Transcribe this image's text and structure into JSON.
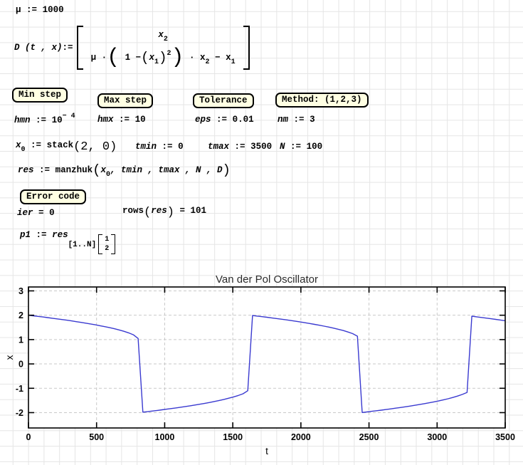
{
  "colors": {
    "region_box_fill": "#ffffe3",
    "region_box_border": "#000000",
    "plot_line": "#3a3ad0",
    "plot_grid": "#c9c9c9",
    "worksheet_grid": "#e5e5e5"
  },
  "formulas": {
    "mu": {
      "lhs": "μ",
      "op": ":=",
      "value": "1000"
    },
    "D": {
      "lhs": "D",
      "args": "(t , x)",
      "op": ":=",
      "row1": {
        "base": "x",
        "sub": "2"
      },
      "row2": {
        "mu": "μ ·",
        "p_open": "(",
        "one_minus": "1 −",
        "p_open2": "(",
        "x": "x",
        "sub1": "1",
        "p_close2": ")",
        "sup": "2",
        "p_close": ")",
        "times_x": "· x",
        "sub2": "2",
        "minus_x": "− x",
        "sub3": "1"
      }
    },
    "min_step_label": "Min step",
    "hmn": {
      "lhs": "hmn",
      "op": ":=",
      "base": "10",
      "sup": "− 4"
    },
    "max_step_label": "Max step",
    "hmx": {
      "lhs": "hmx",
      "op": ":=",
      "value": "10"
    },
    "tolerance_label": "Tolerance",
    "eps": {
      "lhs": "eps",
      "op": ":=",
      "value": "0.01"
    },
    "method_label": "Method: (1,2,3)",
    "nm": {
      "lhs": "nm",
      "op": ":=",
      "value": "3"
    },
    "x0": {
      "base": "x",
      "sub": "0",
      "op": ":=",
      "fn": "stack",
      "args": "(2, 0)"
    },
    "tmin": {
      "lhs": "tmin",
      "op": ":=",
      "value": "0"
    },
    "tmax": {
      "lhs": "tmax",
      "op": ":=",
      "value": "3500"
    },
    "n": {
      "lhs": "N",
      "op": ":=",
      "value": "100"
    },
    "res": {
      "lhs": "res",
      "op": ":=",
      "fn": "manzhuk",
      "open": "(",
      "xbase": "x",
      "xsub": "0",
      "rest": ", tmin , tmax , N , D",
      "close": ")"
    },
    "error_label": "Error code",
    "ier": {
      "lhs": "ier",
      "op": "=",
      "value": "0"
    },
    "rows": {
      "fn": "rows",
      "open": "(",
      "arg": "res",
      "close": ")",
      "op": "=",
      "value": "101"
    },
    "p1": {
      "lhs": "p1",
      "op": ":=",
      "base": "res",
      "index": "[1..N]",
      "v1": "1",
      "v2": "2"
    }
  },
  "chart_data": {
    "type": "line",
    "title": "Van der Pol Oscillator",
    "xlabel": "t",
    "ylabel": "x",
    "xlim": [
      0,
      3500
    ],
    "ylim": [
      -2.63,
      3.16
    ],
    "xticks": [
      0,
      500,
      1000,
      1500,
      2000,
      2500,
      3000,
      3500
    ],
    "yticks": [
      3,
      2,
      1,
      0,
      -1,
      -2
    ],
    "grid": "dashed",
    "legend": "none",
    "line_color": "#3a3ad0",
    "series": [
      {
        "name": "p1",
        "points": [
          [
            0,
            2
          ],
          [
            35,
            1.976
          ],
          [
            70,
            1.952
          ],
          [
            105,
            1.928
          ],
          [
            140,
            1.903
          ],
          [
            175,
            1.877
          ],
          [
            210,
            1.851
          ],
          [
            245,
            1.823
          ],
          [
            280,
            1.796
          ],
          [
            315,
            1.767
          ],
          [
            350,
            1.737
          ],
          [
            385,
            1.707
          ],
          [
            420,
            1.674
          ],
          [
            455,
            1.641
          ],
          [
            490,
            1.607
          ],
          [
            525,
            1.57
          ],
          [
            560,
            1.531
          ],
          [
            595,
            1.49
          ],
          [
            630,
            1.446
          ],
          [
            665,
            1.397
          ],
          [
            700,
            1.342
          ],
          [
            735,
            1.278
          ],
          [
            770,
            1.198
          ],
          [
            805,
            1.045
          ],
          [
            840,
            -1.982
          ],
          [
            875,
            -1.959
          ],
          [
            910,
            -1.935
          ],
          [
            945,
            -1.91
          ],
          [
            980,
            -1.885
          ],
          [
            1015,
            -1.859
          ],
          [
            1050,
            -1.832
          ],
          [
            1085,
            -1.805
          ],
          [
            1120,
            -1.776
          ],
          [
            1155,
            -1.747
          ],
          [
            1190,
            -1.717
          ],
          [
            1225,
            -1.685
          ],
          [
            1260,
            -1.652
          ],
          [
            1295,
            -1.618
          ],
          [
            1330,
            -1.582
          ],
          [
            1365,
            -1.543
          ],
          [
            1400,
            -1.502
          ],
          [
            1435,
            -1.457
          ],
          [
            1470,
            -1.409
          ],
          [
            1505,
            -1.356
          ],
          [
            1540,
            -1.296
          ],
          [
            1575,
            -1.226
          ],
          [
            1610,
            -1.1
          ],
          [
            1645,
            1.988
          ],
          [
            1680,
            1.965
          ],
          [
            1715,
            1.941
          ],
          [
            1750,
            1.916
          ],
          [
            1785,
            1.891
          ],
          [
            1820,
            1.865
          ],
          [
            1855,
            1.838
          ],
          [
            1890,
            1.811
          ],
          [
            1925,
            1.782
          ],
          [
            1960,
            1.753
          ],
          [
            1995,
            1.723
          ],
          [
            2030,
            1.692
          ],
          [
            2065,
            1.659
          ],
          [
            2100,
            1.626
          ],
          [
            2135,
            1.59
          ],
          [
            2170,
            1.553
          ],
          [
            2205,
            1.513
          ],
          [
            2240,
            1.471
          ],
          [
            2275,
            1.424
          ],
          [
            2310,
            1.373
          ],
          [
            2345,
            1.313
          ],
          [
            2380,
            1.245
          ],
          [
            2415,
            1.139
          ],
          [
            2450,
            -1.994
          ],
          [
            2485,
            -1.971
          ],
          [
            2520,
            -1.947
          ],
          [
            2555,
            -1.923
          ],
          [
            2590,
            -1.898
          ],
          [
            2625,
            -1.872
          ],
          [
            2660,
            -1.845
          ],
          [
            2695,
            -1.818
          ],
          [
            2730,
            -1.79
          ],
          [
            2765,
            -1.761
          ],
          [
            2800,
            -1.731
          ],
          [
            2835,
            -1.7
          ],
          [
            2870,
            -1.668
          ],
          [
            2905,
            -1.634
          ],
          [
            2940,
            -1.599
          ],
          [
            2975,
            -1.561
          ],
          [
            3010,
            -1.521
          ],
          [
            3045,
            -1.478
          ],
          [
            3080,
            -1.431
          ],
          [
            3115,
            -1.379
          ],
          [
            3150,
            -1.32
          ],
          [
            3185,
            -1.254
          ],
          [
            3220,
            -1.171
          ],
          [
            3255,
            1.96
          ],
          [
            3290,
            1.934
          ],
          [
            3325,
            1.909
          ],
          [
            3360,
            1.883
          ],
          [
            3395,
            1.857
          ],
          [
            3430,
            1.83
          ],
          [
            3465,
            1.803
          ],
          [
            3500,
            1.774
          ]
        ]
      }
    ]
  }
}
